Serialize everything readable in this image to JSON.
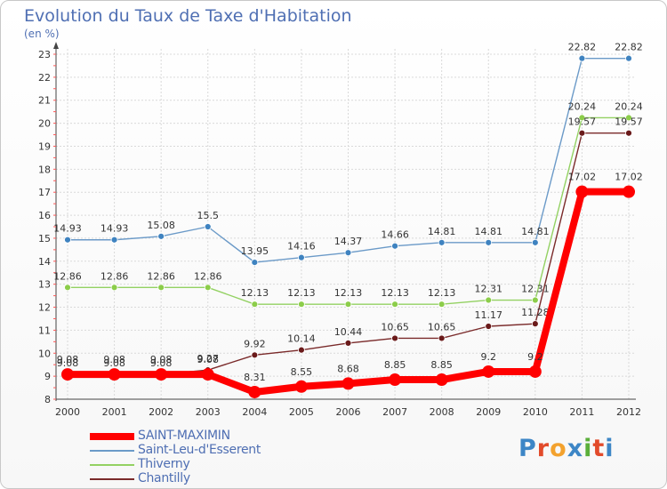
{
  "colors": {
    "saint_maximin": "#ff0000",
    "saint_leu": "#6b9ac8",
    "thiverny": "#93d162",
    "chantilly": "#7a2a2a"
  },
  "logo": {
    "text": [
      "P",
      "r",
      "o",
      "x",
      "i",
      "t",
      "i"
    ],
    "colors": [
      "#3d86c6",
      "#e24b2b",
      "#f3a22e",
      "#3d86c6",
      "#5aaf3a",
      "#e24b2b",
      "#3d86c6"
    ]
  },
  "chart_data": {
    "type": "line",
    "title": "Evolution du Taux de Taxe d'Habitation",
    "subtitle": "(en %)",
    "x": [
      "2000",
      "2001",
      "2002",
      "2003",
      "2004",
      "2005",
      "2006",
      "2007",
      "2008",
      "2009",
      "2010",
      "2011",
      "2012"
    ],
    "ylim": [
      8,
      23
    ],
    "yticks": [
      "8",
      "9",
      "10",
      "11",
      "12",
      "13",
      "14",
      "15",
      "16",
      "17",
      "18",
      "19",
      "20",
      "21",
      "22",
      "23"
    ],
    "grid": true,
    "legend_position": "bottom-left",
    "series": [
      {
        "name": "Saint-Leu-d'Esserent",
        "values": [
          14.93,
          14.93,
          15.08,
          15.5,
          13.95,
          14.16,
          14.37,
          14.66,
          14.81,
          14.81,
          14.81,
          22.82,
          22.82
        ],
        "labels": [
          "14.93",
          "14.93",
          "15.08",
          "15.5",
          "13.95",
          "14.16",
          "14.37",
          "14.66",
          "14.81",
          "14.81",
          "14.81",
          "22.82",
          "22.82"
        ]
      },
      {
        "name": "Thiverny",
        "values": [
          12.86,
          12.86,
          12.86,
          12.86,
          12.13,
          12.13,
          12.13,
          12.13,
          12.13,
          12.31,
          12.31,
          20.24,
          20.24
        ],
        "labels": [
          "12.86",
          "12.86",
          "12.86",
          "12.86",
          "12.13",
          "12.13",
          "12.13",
          "12.13",
          "12.13",
          "12.31",
          "12.31",
          "20.24",
          "20.24"
        ]
      },
      {
        "name": "Chantilly",
        "values": [
          9.08,
          9.08,
          9.08,
          9.27,
          9.92,
          10.14,
          10.44,
          10.65,
          10.65,
          11.17,
          11.28,
          19.57,
          19.57
        ],
        "labels": [
          "9.08",
          "9.08",
          "9.08",
          "9.27",
          "9.92",
          "10.14",
          "10.44",
          "10.65",
          "10.65",
          "11.17",
          "11.28",
          "19.57",
          "19.57"
        ]
      },
      {
        "name": "SAINT-MAXIMIN",
        "values": [
          9.08,
          9.08,
          9.08,
          9.08,
          8.31,
          8.55,
          8.68,
          8.85,
          8.85,
          9.2,
          9.2,
          17.02,
          17.02
        ],
        "labels": [
          "9.08",
          "9.08",
          "9.08",
          "9.08",
          "8.31",
          "8.55",
          "8.68",
          "8.85",
          "8.85",
          "9.2",
          "9.2",
          "17.02",
          "17.02"
        ]
      }
    ],
    "legend": [
      "SAINT-MAXIMIN",
      "Saint-Leu-d'Esserent",
      "Thiverny",
      "Chantilly"
    ]
  }
}
